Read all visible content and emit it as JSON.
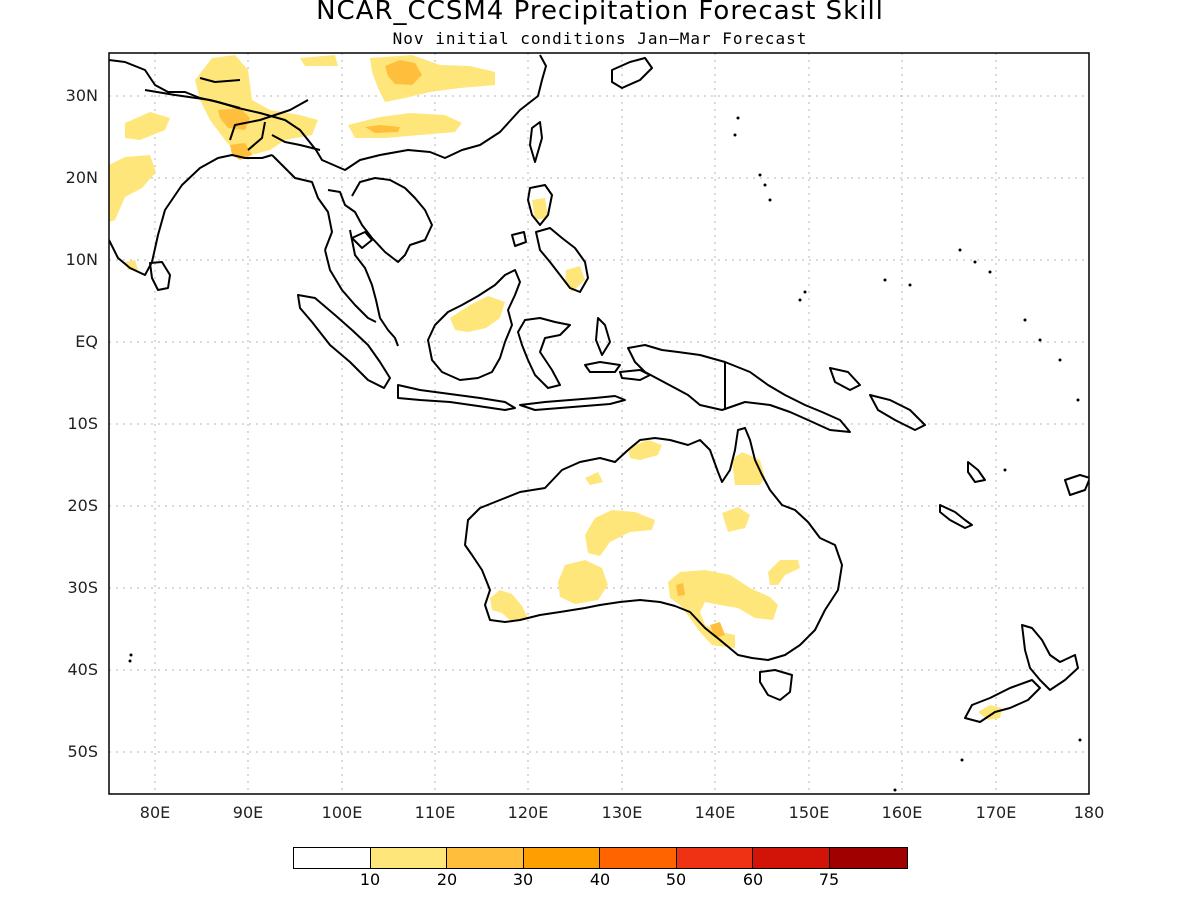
{
  "title": "NCAR_CCSM4 Precipitation Forecast Skill",
  "subtitle": "Nov initial conditions  Jan–Mar Forecast",
  "lat_labels": [
    "30N",
    "20N",
    "10N",
    "EQ",
    "10S",
    "20S",
    "30S",
    "40S",
    "50S"
  ],
  "lon_labels": [
    "80E",
    "90E",
    "100E",
    "110E",
    "120E",
    "130E",
    "140E",
    "150E",
    "160E",
    "170E",
    "180"
  ],
  "map_extent": {
    "lon": [
      75,
      180
    ],
    "lat": [
      -55,
      35
    ]
  },
  "colorbar": {
    "colors": [
      "#ffffff",
      "#ffe67a",
      "#ffbe3c",
      "#ff9e00",
      "#ff6400",
      "#f03214",
      "#d21408",
      "#a00000"
    ],
    "ticks": [
      "10",
      "20",
      "30",
      "40",
      "50",
      "60",
      "75"
    ]
  }
}
